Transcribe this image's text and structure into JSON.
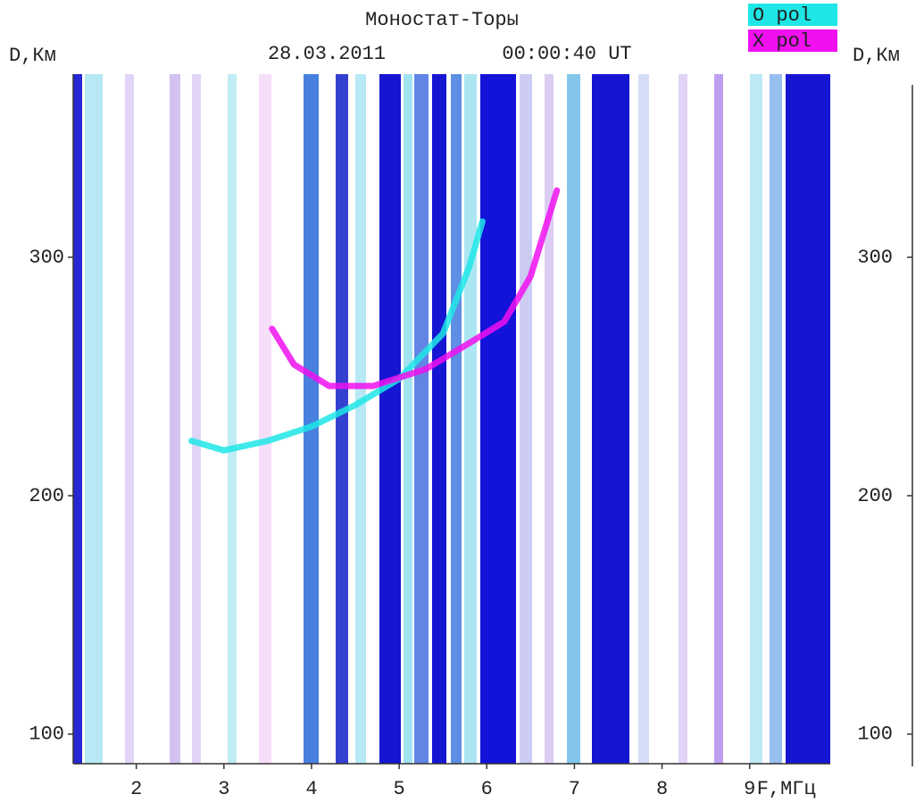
{
  "chart_data": {
    "type": "line",
    "title": "Моностат-Торы",
    "subtitle": "28.03.2011",
    "time": "00:00:40 UT",
    "x_label": "F,МГц",
    "y_label": "D,Км",
    "y2_label": "D,Км",
    "xlim": [
      1.28,
      9.92
    ],
    "ylim": [
      87.6,
      376.8
    ],
    "y2lim": [
      87.6,
      376.8
    ],
    "xticks": [
      2,
      3,
      4,
      5,
      6,
      7,
      8,
      9
    ],
    "yticks": [
      100,
      200,
      300
    ],
    "y2ticks": [
      100,
      200,
      300
    ],
    "series": [
      {
        "name": "O pol",
        "color": "#1ee6e6",
        "x": [
          2.63,
          3.0,
          3.5,
          4.0,
          4.5,
          5.0,
          5.5,
          5.8,
          5.95
        ],
        "values": [
          223,
          219,
          223,
          229,
          238,
          249,
          268,
          296,
          315
        ]
      },
      {
        "name": "X pol",
        "color": "#f010f0",
        "x": [
          3.55,
          3.8,
          4.2,
          4.7,
          5.3,
          5.8,
          6.2,
          6.5,
          6.8
        ],
        "values": [
          270,
          255,
          246,
          246,
          253,
          264,
          273,
          292,
          328
        ]
      }
    ]
  }
}
